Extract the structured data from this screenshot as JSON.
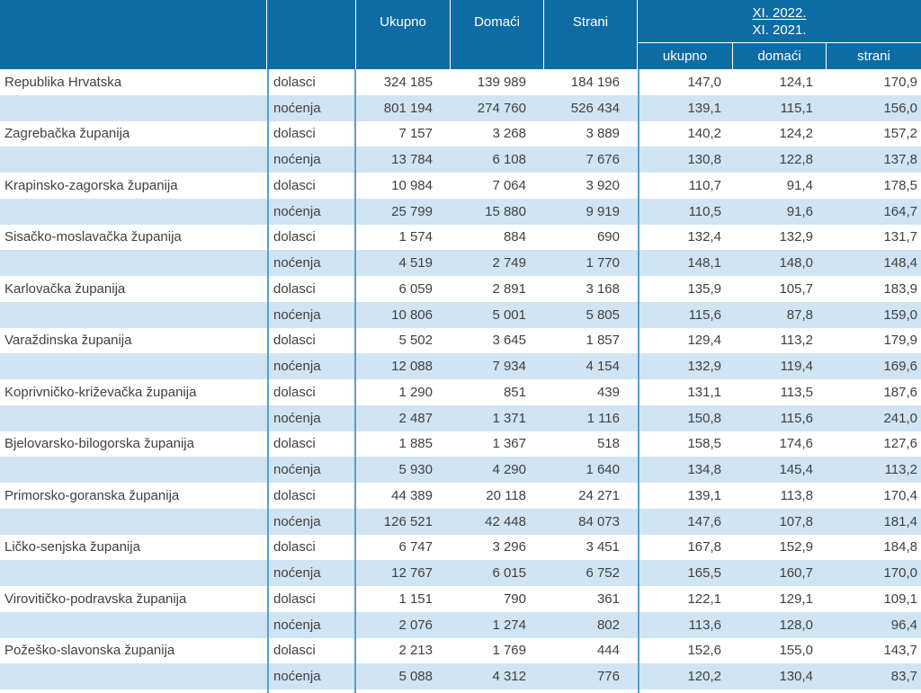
{
  "table": {
    "header": {
      "col_ukupno": "Ukupno",
      "col_domaci": "Domaći",
      "col_strani": "Strani",
      "index_numerator": "XI. 2022.",
      "index_denominator": "XI. 2021.",
      "sub_ukupno": "ukupno",
      "sub_domaci": "domaći",
      "sub_strani": "strani"
    },
    "row_labels": {
      "dolasci": "dolasci",
      "nocenja": "noćenja"
    },
    "colors": {
      "header_bg": "#0E6CA4",
      "row_alt_bg": "#D0E4F3",
      "grid_line": "#57A0CD",
      "header_text": "#FFFFFF",
      "body_text": "#404040"
    },
    "regions": [
      {
        "name": "Republika Hrvatska",
        "dolasci": {
          "ukupno": "324 185",
          "domaci": "139 989",
          "strani": "184 196",
          "idx_ukupno": "147,0",
          "idx_domaci": "124,1",
          "idx_strani": "170,9"
        },
        "nocenja": {
          "ukupno": "801 194",
          "domaci": "274 760",
          "strani": "526 434",
          "idx_ukupno": "139,1",
          "idx_domaci": "115,1",
          "idx_strani": "156,0"
        }
      },
      {
        "name": "Zagrebačka županija",
        "dolasci": {
          "ukupno": "7 157",
          "domaci": "3 268",
          "strani": "3 889",
          "idx_ukupno": "140,2",
          "idx_domaci": "124,2",
          "idx_strani": "157,2"
        },
        "nocenja": {
          "ukupno": "13 784",
          "domaci": "6 108",
          "strani": "7 676",
          "idx_ukupno": "130,8",
          "idx_domaci": "122,8",
          "idx_strani": "137,8"
        }
      },
      {
        "name": "Krapinsko-zagorska županija",
        "dolasci": {
          "ukupno": "10 984",
          "domaci": "7 064",
          "strani": "3 920",
          "idx_ukupno": "110,7",
          "idx_domaci": "91,4",
          "idx_strani": "178,5"
        },
        "nocenja": {
          "ukupno": "25 799",
          "domaci": "15 880",
          "strani": "9 919",
          "idx_ukupno": "110,5",
          "idx_domaci": "91,6",
          "idx_strani": "164,7"
        }
      },
      {
        "name": "Sisačko-moslavačka županija",
        "dolasci": {
          "ukupno": "1 574",
          "domaci": "884",
          "strani": "690",
          "idx_ukupno": "132,4",
          "idx_domaci": "132,9",
          "idx_strani": "131,7"
        },
        "nocenja": {
          "ukupno": "4 519",
          "domaci": "2 749",
          "strani": "1 770",
          "idx_ukupno": "148,1",
          "idx_domaci": "148,0",
          "idx_strani": "148,4"
        }
      },
      {
        "name": "Karlovačka županija",
        "dolasci": {
          "ukupno": "6 059",
          "domaci": "2 891",
          "strani": "3 168",
          "idx_ukupno": "135,9",
          "idx_domaci": "105,7",
          "idx_strani": "183,9"
        },
        "nocenja": {
          "ukupno": "10 806",
          "domaci": "5 001",
          "strani": "5 805",
          "idx_ukupno": "115,6",
          "idx_domaci": "87,8",
          "idx_strani": "159,0"
        }
      },
      {
        "name": "Varaždinska županija",
        "dolasci": {
          "ukupno": "5 502",
          "domaci": "3 645",
          "strani": "1 857",
          "idx_ukupno": "129,4",
          "idx_domaci": "113,2",
          "idx_strani": "179,9"
        },
        "nocenja": {
          "ukupno": "12 088",
          "domaci": "7 934",
          "strani": "4 154",
          "idx_ukupno": "132,9",
          "idx_domaci": "119,4",
          "idx_strani": "169,6"
        }
      },
      {
        "name": "Koprivničko-križevačka županija",
        "dolasci": {
          "ukupno": "1 290",
          "domaci": "851",
          "strani": "439",
          "idx_ukupno": "131,1",
          "idx_domaci": "113,5",
          "idx_strani": "187,6"
        },
        "nocenja": {
          "ukupno": "2 487",
          "domaci": "1 371",
          "strani": "1 116",
          "idx_ukupno": "150,8",
          "idx_domaci": "115,6",
          "idx_strani": "241,0"
        }
      },
      {
        "name": "Bjelovarsko-bilogorska županija",
        "dolasci": {
          "ukupno": "1 885",
          "domaci": "1 367",
          "strani": "518",
          "idx_ukupno": "158,5",
          "idx_domaci": "174,6",
          "idx_strani": "127,6"
        },
        "nocenja": {
          "ukupno": "5 930",
          "domaci": "4 290",
          "strani": "1 640",
          "idx_ukupno": "134,8",
          "idx_domaci": "145,4",
          "idx_strani": "113,2"
        }
      },
      {
        "name": "Primorsko-goranska županija",
        "dolasci": {
          "ukupno": "44 389",
          "domaci": "20 118",
          "strani": "24 271",
          "idx_ukupno": "139,1",
          "idx_domaci": "113,8",
          "idx_strani": "170,4"
        },
        "nocenja": {
          "ukupno": "126 521",
          "domaci": "42 448",
          "strani": "84 073",
          "idx_ukupno": "147,6",
          "idx_domaci": "107,8",
          "idx_strani": "181,4"
        }
      },
      {
        "name": "Ličko-senjska županija",
        "dolasci": {
          "ukupno": "6 747",
          "domaci": "3 296",
          "strani": "3 451",
          "idx_ukupno": "167,8",
          "idx_domaci": "152,9",
          "idx_strani": "184,8"
        },
        "nocenja": {
          "ukupno": "12 767",
          "domaci": "6 015",
          "strani": "6 752",
          "idx_ukupno": "165,5",
          "idx_domaci": "160,7",
          "idx_strani": "170,0"
        }
      },
      {
        "name": "Virovitičko-podravska županija",
        "dolasci": {
          "ukupno": "1 151",
          "domaci": "790",
          "strani": "361",
          "idx_ukupno": "122,1",
          "idx_domaci": "129,1",
          "idx_strani": "109,1"
        },
        "nocenja": {
          "ukupno": "2 076",
          "domaci": "1 274",
          "strani": "802",
          "idx_ukupno": "113,6",
          "idx_domaci": "128,0",
          "idx_strani": "96,4"
        }
      },
      {
        "name": "Požeško-slavonska županija",
        "dolasci": {
          "ukupno": "2 213",
          "domaci": "1 769",
          "strani": "444",
          "idx_ukupno": "152,6",
          "idx_domaci": "155,0",
          "idx_strani": "143,7"
        },
        "nocenja": {
          "ukupno": "5 088",
          "domaci": "4 312",
          "strani": "776",
          "idx_ukupno": "120,2",
          "idx_domaci": "130,4",
          "idx_strani": "83,7"
        }
      }
    ]
  }
}
